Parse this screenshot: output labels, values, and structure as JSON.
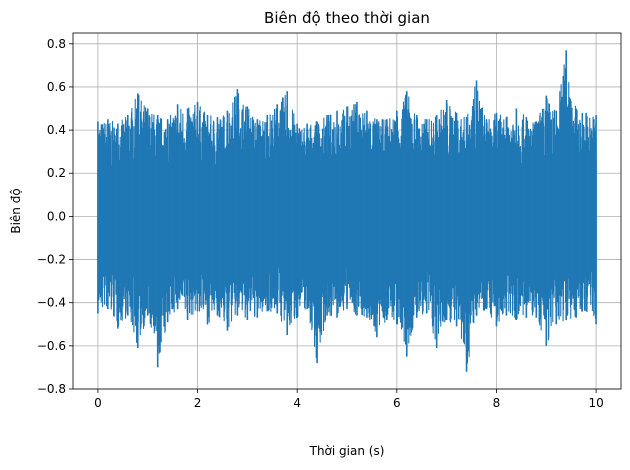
{
  "chart_data": {
    "type": "line",
    "title": "Biên độ theo thời gian",
    "xlabel": "Thời gian (s)",
    "ylabel": "Biên độ",
    "xlim": [
      -0.5,
      10.5
    ],
    "ylim": [
      -0.8,
      0.85
    ],
    "xticks": [
      0,
      2,
      4,
      6,
      8,
      10
    ],
    "xtick_labels": [
      "0",
      "2",
      "4",
      "6",
      "8",
      "10"
    ],
    "yticks": [
      -0.8,
      -0.6,
      -0.4,
      -0.2,
      0.0,
      0.2,
      0.4,
      0.6,
      0.8
    ],
    "ytick_labels": [
      "−0.8",
      "−0.6",
      "−0.4",
      "−0.2",
      "0.0",
      "0.2",
      "0.4",
      "0.6",
      "0.8"
    ],
    "grid": true,
    "line_color": "#1f77b4",
    "series": [
      {
        "x": [
          0.0,
          0.2,
          0.4,
          0.6,
          0.8,
          1.0,
          1.2,
          1.4,
          1.6,
          1.8,
          2.0,
          2.2,
          2.4,
          2.6,
          2.8,
          3.0,
          3.2,
          3.4,
          3.6,
          3.8,
          4.0,
          4.2,
          4.4,
          4.6,
          4.8,
          5.0,
          5.2,
          5.4,
          5.6,
          5.8,
          6.0,
          6.2,
          6.4,
          6.6,
          6.8,
          7.0,
          7.2,
          7.4,
          7.6,
          7.8,
          8.0,
          8.2,
          8.4,
          8.6,
          8.8,
          9.0,
          9.2,
          9.4,
          9.6,
          9.8,
          10.0
        ],
        "max": [
          0.44,
          0.45,
          0.43,
          0.47,
          0.57,
          0.5,
          0.47,
          0.45,
          0.52,
          0.5,
          0.53,
          0.47,
          0.46,
          0.49,
          0.59,
          0.51,
          0.45,
          0.47,
          0.52,
          0.58,
          0.43,
          0.43,
          0.44,
          0.47,
          0.49,
          0.51,
          0.53,
          0.49,
          0.45,
          0.45,
          0.49,
          0.58,
          0.47,
          0.45,
          0.47,
          0.54,
          0.48,
          0.46,
          0.63,
          0.45,
          0.48,
          0.46,
          0.5,
          0.46,
          0.44,
          0.56,
          0.49,
          0.77,
          0.5,
          0.48,
          0.47
        ],
        "min": [
          -0.45,
          -0.43,
          -0.52,
          -0.46,
          -0.61,
          -0.46,
          -0.7,
          -0.49,
          -0.43,
          -0.48,
          -0.44,
          -0.5,
          -0.46,
          -0.53,
          -0.46,
          -0.48,
          -0.47,
          -0.44,
          -0.45,
          -0.55,
          -0.47,
          -0.43,
          -0.68,
          -0.46,
          -0.47,
          -0.43,
          -0.46,
          -0.47,
          -0.56,
          -0.48,
          -0.5,
          -0.65,
          -0.47,
          -0.45,
          -0.61,
          -0.48,
          -0.51,
          -0.72,
          -0.46,
          -0.43,
          -0.51,
          -0.46,
          -0.48,
          -0.47,
          -0.47,
          -0.6,
          -0.5,
          -0.48,
          -0.47,
          -0.44,
          -0.5
        ]
      }
    ]
  }
}
